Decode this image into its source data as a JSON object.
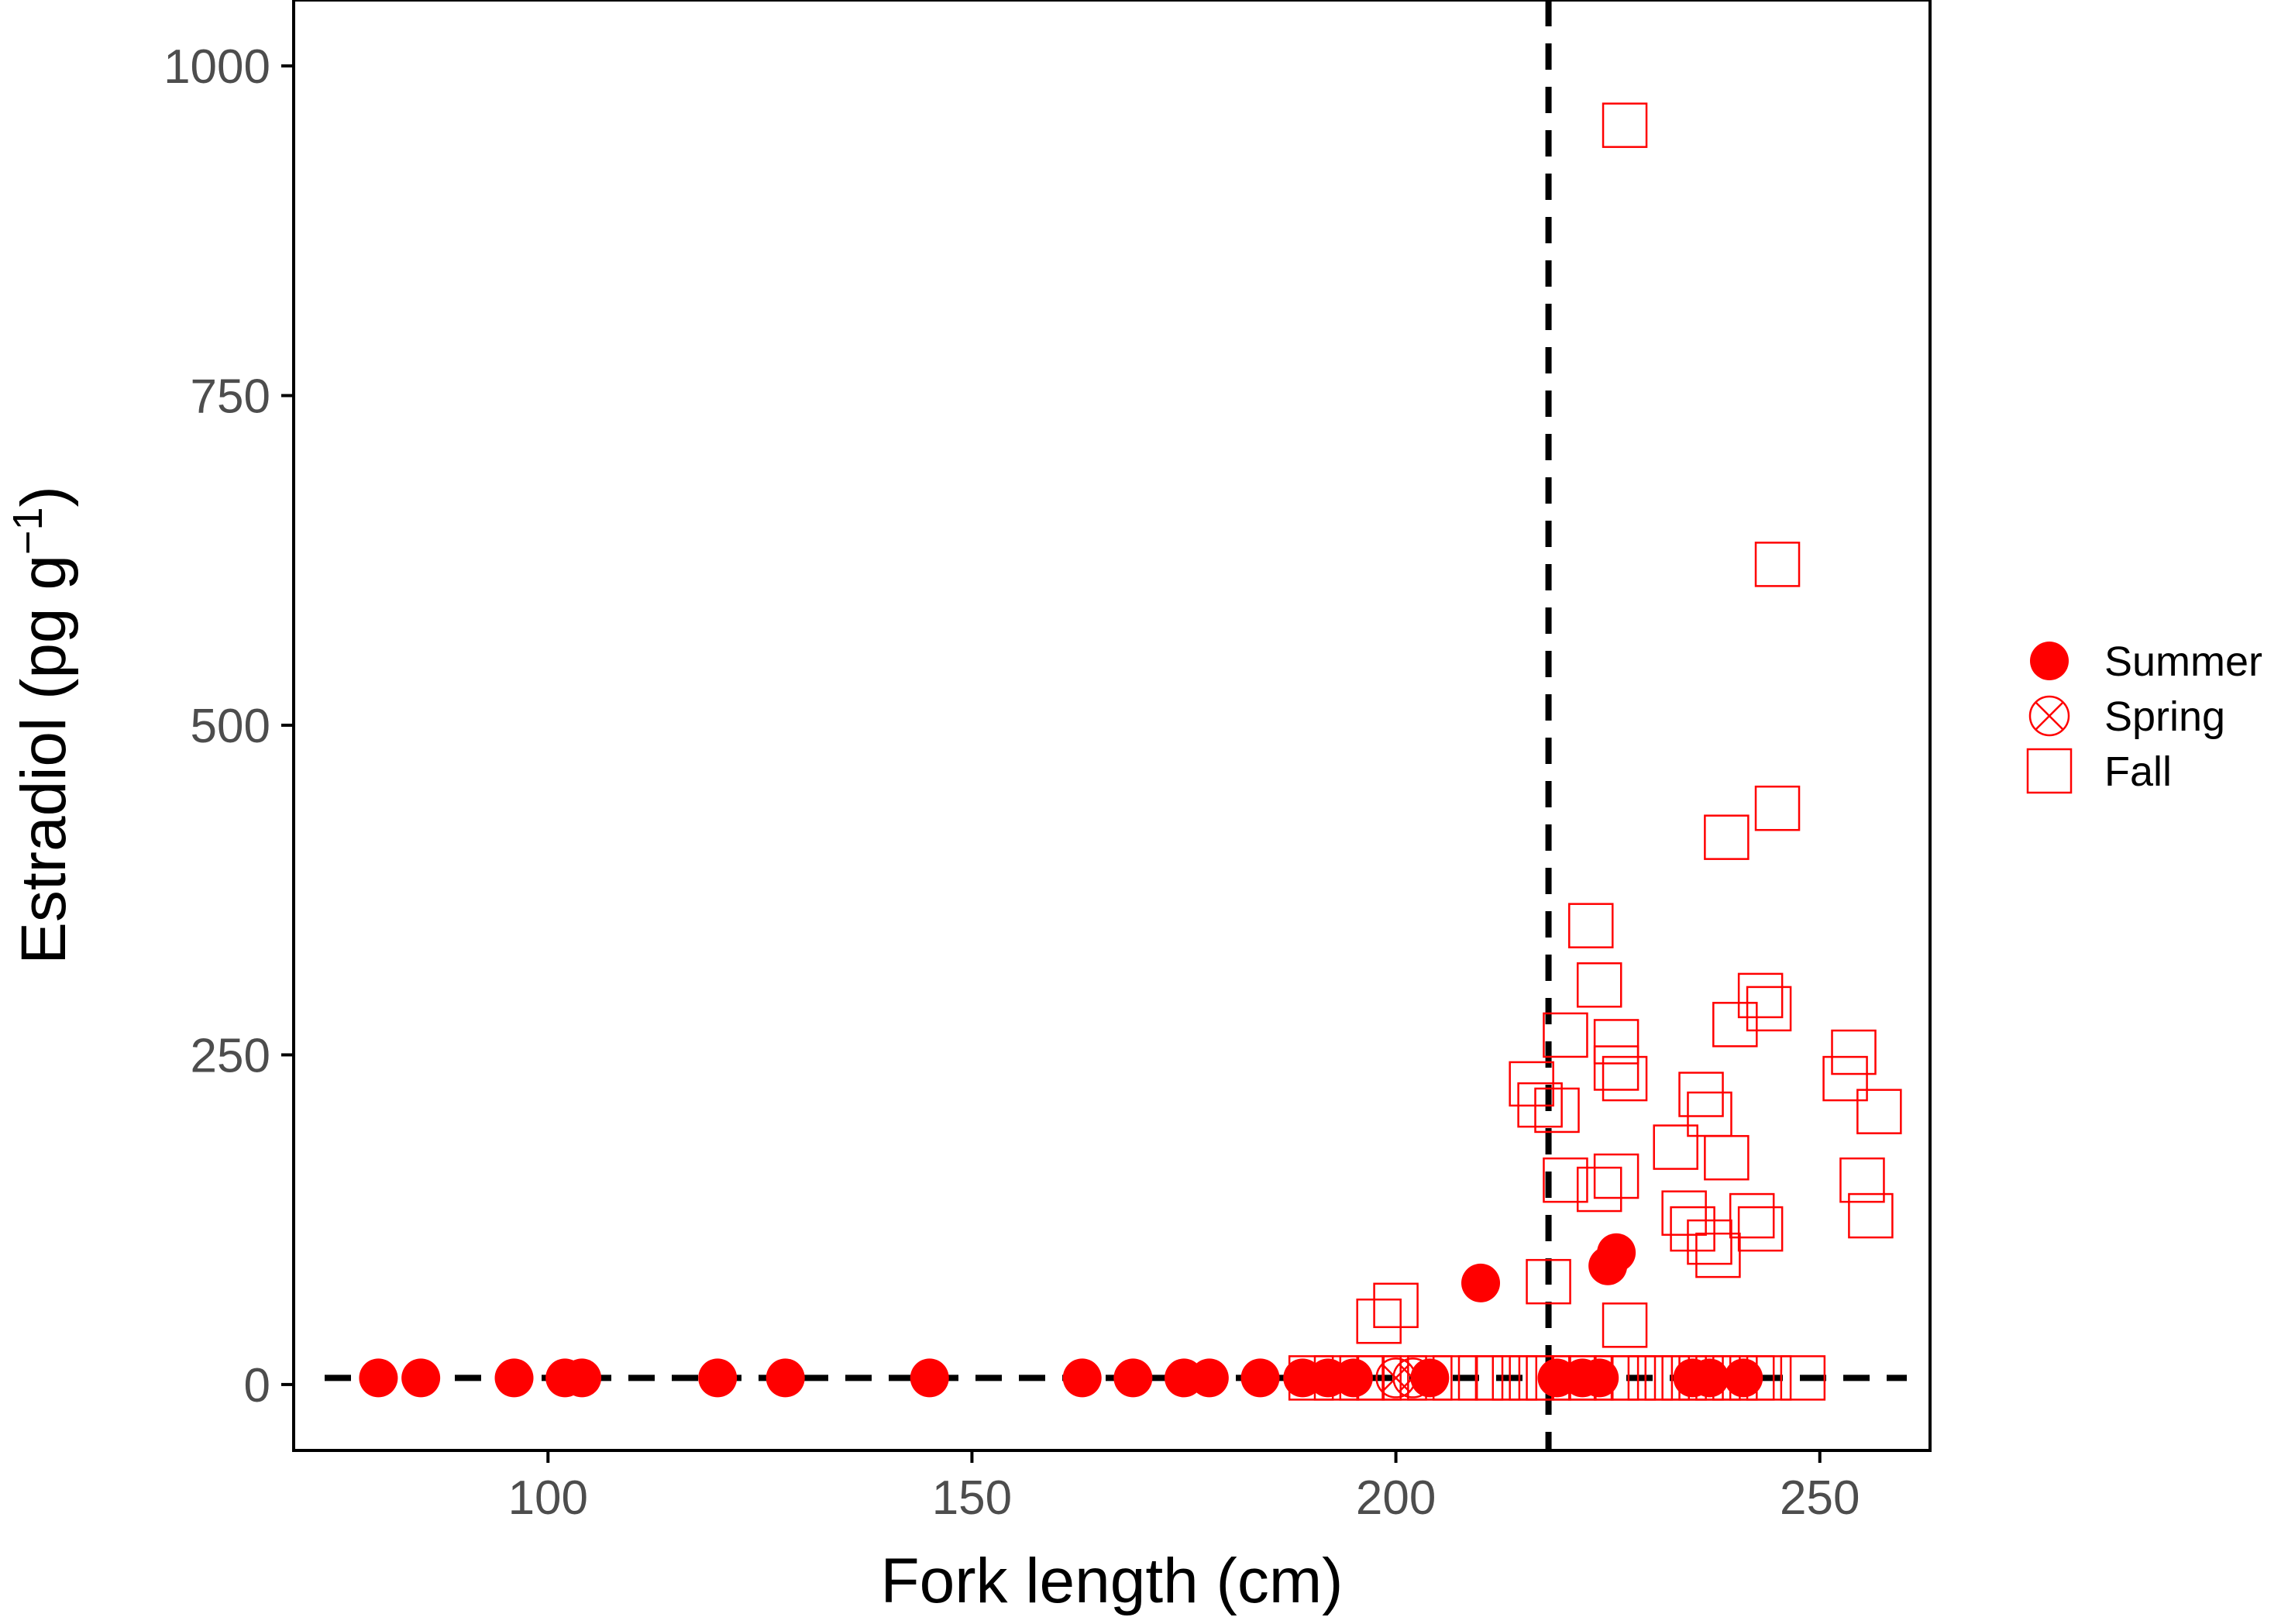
{
  "chart_data": {
    "type": "scatter",
    "title": "",
    "xlabel": "Fork length (cm)",
    "ylabel_main": "Estradiol (pg g",
    "ylabel_sup": "−1",
    "ylabel_close": ")",
    "xlim": [
      70,
      263
    ],
    "ylim": [
      -50,
      1050
    ],
    "xticks": [
      100,
      150,
      200,
      250
    ],
    "yticks": [
      0,
      250,
      500,
      750,
      1000
    ],
    "xtick_labels": [
      "100",
      "150",
      "200",
      "250"
    ],
    "ytick_labels": [
      "0",
      "250",
      "500",
      "750",
      "1000"
    ],
    "grid": false,
    "legend_position": "right",
    "reference_lines": {
      "vertical_x": 218,
      "horizontal_y": 5
    },
    "colors": {
      "point": "#ff0000",
      "reference_line": "#000000",
      "axis": "#000000"
    },
    "series": [
      {
        "name": "Summer",
        "marker": "filled-circle",
        "x": [
          80,
          85,
          96,
          102,
          104,
          120,
          128,
          145,
          163,
          169,
          175,
          178,
          184,
          189,
          192,
          195,
          204,
          219,
          222,
          224,
          235,
          237,
          241,
          210,
          225,
          226
        ],
        "y": [
          5,
          5,
          5,
          5,
          5,
          5,
          5,
          5,
          5,
          5,
          5,
          5,
          5,
          5,
          5,
          5,
          5,
          5,
          5,
          5,
          5,
          5,
          5,
          77,
          90,
          100
        ]
      },
      {
        "name": "Spring",
        "marker": "circle-x",
        "x": [
          200,
          202
        ],
        "y": [
          5,
          5
        ]
      },
      {
        "name": "Fall",
        "marker": "open-square",
        "x": [
          190,
          193,
          196,
          198,
          201,
          204,
          207,
          210,
          212,
          214,
          216,
          218,
          221,
          223,
          226,
          228,
          230,
          232,
          234,
          236,
          238,
          240,
          242,
          244,
          248,
          198,
          200,
          218,
          227,
          227,
          245,
          223,
          224,
          239,
          245,
          243,
          244,
          240,
          226,
          220,
          227,
          226,
          216,
          217,
          219,
          236,
          237,
          253,
          254,
          257,
          233,
          220,
          224,
          226,
          239,
          234,
          255,
          242,
          235,
          243,
          256,
          237,
          238
        ],
        "y": [
          5,
          5,
          5,
          5,
          5,
          5,
          5,
          5,
          5,
          5,
          5,
          5,
          5,
          5,
          5,
          5,
          5,
          5,
          5,
          5,
          5,
          5,
          5,
          5,
          5,
          48,
          60,
          78,
          45,
          955,
          622,
          348,
          303,
          415,
          437,
          295,
          285,
          273,
          260,
          265,
          232,
          240,
          228,
          212,
          208,
          220,
          205,
          232,
          252,
          207,
          180,
          155,
          148,
          158,
          172,
          130,
          155,
          128,
          118,
          118,
          128,
          108,
          98
        ]
      }
    ]
  }
}
